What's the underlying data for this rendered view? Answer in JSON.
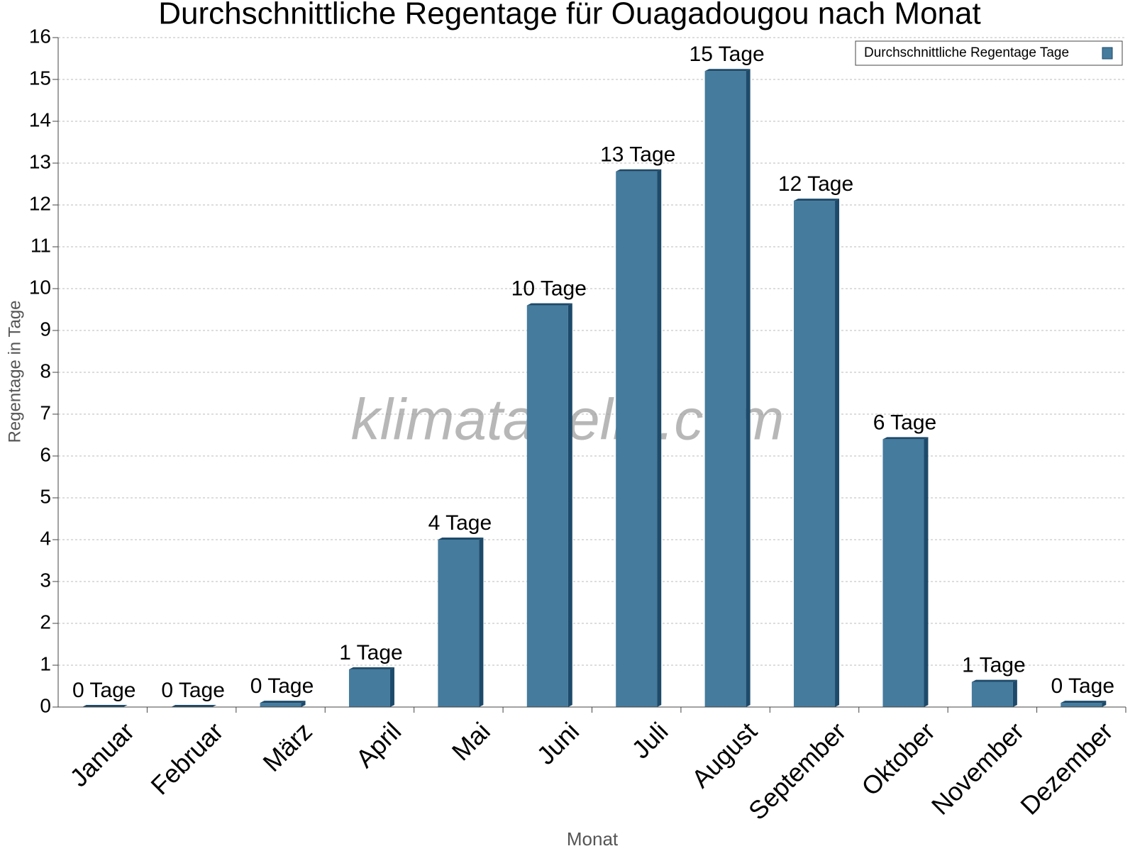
{
  "chart_data": {
    "type": "bar",
    "title": "Durchschnittliche Regentage für Ouagadougou nach Monat",
    "x_label": "Monat",
    "y_label": "Regentage in Tage",
    "watermark": "klimatabelle.com",
    "categories": [
      "Januar",
      "Februar",
      "März",
      "April",
      "Mai",
      "Juni",
      "Juli",
      "August",
      "September",
      "Oktober",
      "November",
      "Dezember"
    ],
    "series": [
      {
        "name": "Durchschnittliche Regentage Tage",
        "color": "#457b9d",
        "values": [
          0,
          0,
          0.1,
          0.9,
          4.0,
          9.6,
          12.8,
          15.2,
          12.1,
          6.4,
          0.6,
          0.1
        ],
        "value_labels": [
          "0 Tage",
          "0 Tage",
          "0 Tage",
          "1 Tage",
          "4 Tage",
          "10 Tage",
          "13 Tage",
          "15 Tage",
          "12 Tage",
          "6 Tage",
          "1 Tage",
          "0 Tage"
        ]
      }
    ],
    "ylim": [
      0,
      16
    ],
    "yticks": [
      0,
      1,
      2,
      3,
      4,
      5,
      6,
      7,
      8,
      9,
      10,
      11,
      12,
      13,
      14,
      15,
      16
    ],
    "grid": true,
    "legend": "top-right"
  }
}
